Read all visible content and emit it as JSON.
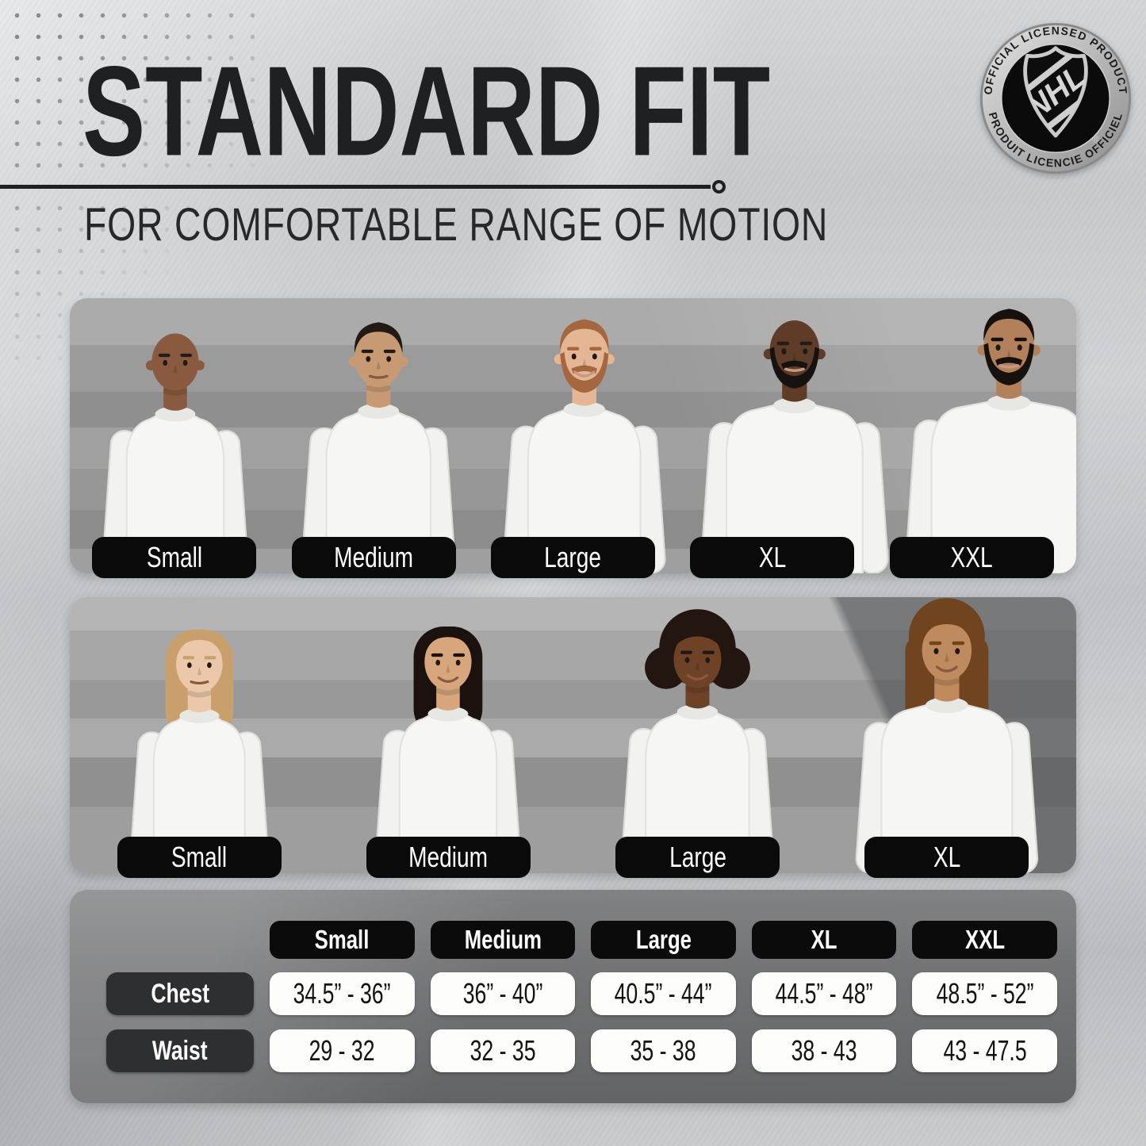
{
  "header": {
    "title": "STANDARD FIT",
    "subtitle": "FOR COMFORTABLE RANGE OF MOTION"
  },
  "badge": {
    "arc_top": "OFFICIAL LICENSED PRODUCT",
    "arc_bottom": "PRODUIT LICENCIE OFFICIEL",
    "shield": "NHL",
    "registered": "®"
  },
  "men_row": {
    "models": [
      {
        "label": "Small",
        "skin": "#8a5a40",
        "hair_color": "#2a1f18",
        "hair_style": "bald",
        "beard": false,
        "smile": false,
        "build": 1.0
      },
      {
        "label": "Medium",
        "skin": "#c79a74",
        "hair_color": "#241a15",
        "hair_style": "short",
        "beard": false,
        "smile": false,
        "build": 1.05
      },
      {
        "label": "Large",
        "skin": "#e4b694",
        "hair_color": "#a5673f",
        "hair_style": "short",
        "beard": true,
        "smile": true,
        "build": 1.12
      },
      {
        "label": "XL",
        "skin": "#5e3c28",
        "hair_color": "#171210",
        "hair_style": "bald",
        "beard": true,
        "smile": false,
        "build": 1.32
      },
      {
        "label": "XXL",
        "skin": "#b3805c",
        "hair_color": "#17110e",
        "hair_style": "short",
        "beard": true,
        "smile": false,
        "build": 1.48
      }
    ]
  },
  "women_row": {
    "models": [
      {
        "label": "Small",
        "skin": "#ecc8ab",
        "hair_color": "#c9a06b",
        "hair_style": "long",
        "beard": false,
        "smile": false,
        "build": 0.95
      },
      {
        "label": "Medium",
        "skin": "#d7a67c",
        "hair_color": "#1b110e",
        "hair_style": "long",
        "beard": false,
        "smile": true,
        "build": 1.0
      },
      {
        "label": "Large",
        "skin": "#6e4227",
        "hair_color": "#231510",
        "hair_style": "afro",
        "beard": false,
        "smile": true,
        "build": 1.06
      },
      {
        "label": "XL",
        "skin": "#bf8a5e",
        "hair_color": "#70441f",
        "hair_style": "curly",
        "beard": false,
        "smile": true,
        "build": 1.28
      }
    ]
  },
  "size_table": {
    "columns": [
      "Small",
      "Medium",
      "Large",
      "XL",
      "XXL"
    ],
    "rows": [
      {
        "label": "Chest",
        "values": [
          "34.5” - 36”",
          "36” - 40”",
          "40.5” - 44”",
          "44.5” - 48”",
          "48.5” - 52”"
        ]
      },
      {
        "label": "Waist",
        "values": [
          "29 - 32",
          "32 - 35",
          "35 - 38",
          "38 - 43",
          "43 - 47.5"
        ]
      }
    ]
  },
  "colors": {
    "title": "#1e2124",
    "pill_black": "#0a0a0b",
    "pill_dark": "#2e2f31",
    "pill_white": "#fdfdfc",
    "panel_gray": "#9a9a9a",
    "table_gray": "#6f7071",
    "sweatshirt": "#f6f6f4"
  }
}
